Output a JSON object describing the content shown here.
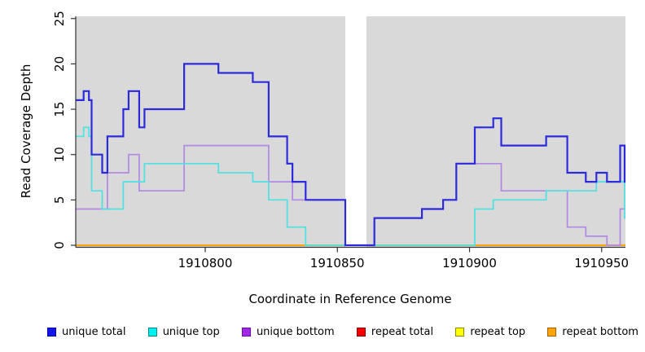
{
  "figure": {
    "xlabel": "Coordinate in Reference Genome",
    "ylabel": "Read Coverage Depth"
  },
  "chart_data": {
    "type": "line",
    "step_mode": "step-after",
    "title": "",
    "xlabel": "Coordinate in Reference Genome",
    "ylabel": "Read Coverage Depth",
    "xlim": [
      1910751,
      1910959
    ],
    "ylim": [
      0,
      25
    ],
    "xticks": [
      1910800,
      1910850,
      1910900,
      1910950
    ],
    "yticks": [
      0,
      5,
      10,
      15,
      20,
      25
    ],
    "grid": false,
    "plot_bg_color": "#d9d9d9",
    "gap_region": {
      "start": 1910853,
      "end": 1910861,
      "color": "#ffffff"
    },
    "legend_position": "bottom",
    "series": [
      {
        "name": "repeat total",
        "color": "#e00000",
        "width": 1.5,
        "points": [
          [
            1910751,
            0
          ]
        ]
      },
      {
        "name": "repeat top",
        "color": "#ffff00",
        "width": 1.5,
        "points": [
          [
            1910751,
            0
          ]
        ]
      },
      {
        "name": "repeat bottom",
        "color": "#ffa500",
        "width": 2,
        "points": [
          [
            1910751,
            0
          ]
        ]
      },
      {
        "name": "unique bottom",
        "color": "#b388e2",
        "width": 1.7,
        "points": [
          [
            1910751,
            4
          ],
          [
            1910763,
            8
          ],
          [
            1910771,
            10
          ],
          [
            1910775,
            6
          ],
          [
            1910792,
            11
          ],
          [
            1910824,
            7
          ],
          [
            1910833,
            5
          ],
          [
            1910853,
            0
          ],
          [
            1910864,
            3
          ],
          [
            1910882,
            4
          ],
          [
            1910890,
            5
          ],
          [
            1910895,
            9
          ],
          [
            1910912,
            6
          ],
          [
            1910937,
            2
          ],
          [
            1910944,
            1
          ],
          [
            1910952,
            0
          ],
          [
            1910957,
            4
          ]
        ]
      },
      {
        "name": "unique top",
        "color": "#4ee1e1",
        "width": 1.7,
        "points": [
          [
            1910751,
            12
          ],
          [
            1910754,
            13
          ],
          [
            1910756,
            12
          ],
          [
            1910757,
            6
          ],
          [
            1910761,
            4
          ],
          [
            1910769,
            7
          ],
          [
            1910777,
            9
          ],
          [
            1910805,
            8
          ],
          [
            1910818,
            7
          ],
          [
            1910824,
            5
          ],
          [
            1910831,
            2
          ],
          [
            1910838,
            0
          ],
          [
            1910902,
            4
          ],
          [
            1910909,
            5
          ],
          [
            1910929,
            6
          ],
          [
            1910948,
            7
          ],
          [
            1910958.7,
            3
          ]
        ]
      },
      {
        "name": "unique total",
        "color": "#2b2bdb",
        "width": 2.2,
        "points": [
          [
            1910751,
            16
          ],
          [
            1910754,
            17
          ],
          [
            1910756,
            16
          ],
          [
            1910757,
            10
          ],
          [
            1910761,
            8
          ],
          [
            1910763,
            12
          ],
          [
            1910769,
            15
          ],
          [
            1910771,
            17
          ],
          [
            1910775,
            13
          ],
          [
            1910777,
            15
          ],
          [
            1910792,
            20
          ],
          [
            1910805,
            19
          ],
          [
            1910818,
            18
          ],
          [
            1910824,
            12
          ],
          [
            1910831,
            9
          ],
          [
            1910833,
            7
          ],
          [
            1910838,
            5
          ],
          [
            1910853,
            0
          ],
          [
            1910864,
            3
          ],
          [
            1910882,
            4
          ],
          [
            1910890,
            5
          ],
          [
            1910895,
            9
          ],
          [
            1910902,
            13
          ],
          [
            1910909,
            14
          ],
          [
            1910912,
            11
          ],
          [
            1910929,
            12
          ],
          [
            1910937,
            8
          ],
          [
            1910944,
            7
          ],
          [
            1910948,
            8
          ],
          [
            1910952,
            7
          ],
          [
            1910957,
            11
          ],
          [
            1910958.7,
            7
          ]
        ]
      }
    ]
  },
  "legend": {
    "items": [
      {
        "label": "unique total",
        "fill": "#1414e8",
        "border": "#0000b0"
      },
      {
        "label": "unique top",
        "fill": "#00f0f0",
        "border": "#008b8b"
      },
      {
        "label": "unique bottom",
        "fill": "#a228e8",
        "border": "#6a10a0"
      },
      {
        "label": "repeat total",
        "fill": "#f50000",
        "border": "#8b0000"
      },
      {
        "label": "repeat top",
        "fill": "#ffff00",
        "border": "#8b8b00"
      },
      {
        "label": "repeat bottom",
        "fill": "#ffa500",
        "border": "#a86000"
      }
    ]
  }
}
